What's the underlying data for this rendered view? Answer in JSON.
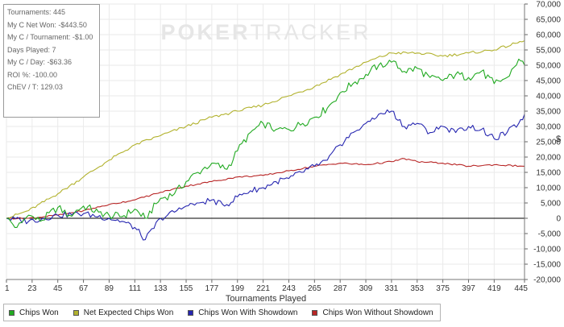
{
  "stats": [
    {
      "label": "Tournaments",
      "value": "445"
    },
    {
      "label": "My C Net Won",
      "value": "-$443.50"
    },
    {
      "label": "My C / Tournament",
      "value": "-$1.00"
    },
    {
      "label": "Days Played",
      "value": "7"
    },
    {
      "label": "My C / Day",
      "value": "-$63.36"
    },
    {
      "label": "ROI %",
      "value": "-100.00"
    },
    {
      "label": "ChEV / T",
      "value": "129.03"
    }
  ],
  "watermark": {
    "part1": "POKER",
    "part2": "TRACKER"
  },
  "colors": {
    "chips_won": "#22aa22",
    "net_expected": "#b2b22e",
    "won_with_showdown": "#2626b0",
    "won_without_showdown": "#b82626",
    "zero_line": "#000000",
    "grid": "#eaeaea"
  },
  "chart_data": {
    "type": "line",
    "title": "",
    "xlabel": "Tournaments Played",
    "ylabel": "$",
    "xlim": [
      1,
      445
    ],
    "ylim": [
      -20000,
      70000
    ],
    "x_ticks": [
      1,
      23,
      45,
      67,
      89,
      111,
      133,
      155,
      177,
      199,
      221,
      243,
      265,
      287,
      309,
      331,
      353,
      375,
      397,
      419,
      445
    ],
    "y_ticks": [
      -20000,
      -15000,
      -10000,
      -5000,
      0,
      5000,
      10000,
      15000,
      20000,
      25000,
      30000,
      35000,
      40000,
      45000,
      50000,
      55000,
      60000,
      65000,
      70000
    ],
    "y_tick_labels": [
      "-20,000",
      "-15,000",
      "-10,000",
      "-5,000",
      "0",
      "5,000",
      "10,000",
      "15,000",
      "20,000",
      "25,000",
      "30,000",
      "35,000",
      "40,000",
      "45,000",
      "50,000",
      "55,000",
      "60,000",
      "65,000",
      "70,000"
    ],
    "grid": true,
    "legend_position": "bottom-left",
    "series": [
      {
        "name": "Chips Won",
        "color": "#22aa22",
        "x": [
          1,
          10,
          20,
          30,
          45,
          55,
          67,
          80,
          89,
          100,
          111,
          120,
          133,
          145,
          155,
          165,
          177,
          190,
          199,
          210,
          221,
          232,
          243,
          255,
          265,
          276,
          287,
          298,
          309,
          320,
          331,
          342,
          353,
          364,
          375,
          386,
          397,
          408,
          419,
          430,
          440,
          445
        ],
        "y": [
          0,
          -3000,
          1000,
          -1000,
          3500,
          1000,
          4000,
          2000,
          1000,
          500,
          3000,
          0,
          6500,
          8000,
          12000,
          15000,
          18000,
          16000,
          22000,
          28000,
          31000,
          29000,
          29000,
          31000,
          33000,
          36000,
          41000,
          44000,
          47000,
          50000,
          51000,
          48000,
          49000,
          46000,
          45000,
          47000,
          46000,
          48000,
          44000,
          46000,
          52000,
          50000
        ]
      },
      {
        "name": "Net Expected Chips Won",
        "color": "#b2b22e",
        "x": [
          1,
          20,
          45,
          67,
          89,
          111,
          133,
          155,
          177,
          199,
          221,
          243,
          265,
          287,
          309,
          331,
          353,
          375,
          397,
          419,
          445
        ],
        "y": [
          0,
          2500,
          8000,
          13500,
          19000,
          24000,
          27000,
          30000,
          33000,
          35000,
          37000,
          40000,
          43000,
          47000,
          51000,
          54000,
          54000,
          53000,
          54000,
          55000,
          58000
        ]
      },
      {
        "name": "Chips Won With Showdown",
        "color": "#2626b0",
        "x": [
          1,
          20,
          45,
          67,
          89,
          100,
          111,
          120,
          133,
          145,
          155,
          166,
          177,
          188,
          199,
          210,
          221,
          232,
          243,
          254,
          265,
          276,
          287,
          298,
          309,
          320,
          331,
          342,
          353,
          364,
          375,
          386,
          397,
          408,
          419,
          430,
          440,
          445
        ],
        "y": [
          0,
          -1000,
          1000,
          1500,
          0,
          -1000,
          -3000,
          -7000,
          0,
          2000,
          4000,
          5000,
          6000,
          4000,
          7000,
          9000,
          10000,
          12000,
          13000,
          15000,
          17000,
          19000,
          24000,
          28000,
          31000,
          34000,
          35000,
          30000,
          31000,
          28000,
          30000,
          28000,
          30000,
          29000,
          26000,
          28000,
          31000,
          34000
        ]
      },
      {
        "name": "Chips Won Without Showdown",
        "color": "#b82626",
        "x": [
          1,
          20,
          45,
          67,
          89,
          111,
          133,
          155,
          177,
          199,
          221,
          243,
          265,
          287,
          309,
          331,
          342,
          353,
          375,
          397,
          419,
          445
        ],
        "y": [
          0,
          0,
          1000,
          2500,
          4500,
          6000,
          8500,
          10500,
          12000,
          13500,
          14000,
          15500,
          17000,
          18000,
          17500,
          18500,
          19500,
          18500,
          18000,
          17000,
          17500,
          17000
        ]
      }
    ]
  }
}
